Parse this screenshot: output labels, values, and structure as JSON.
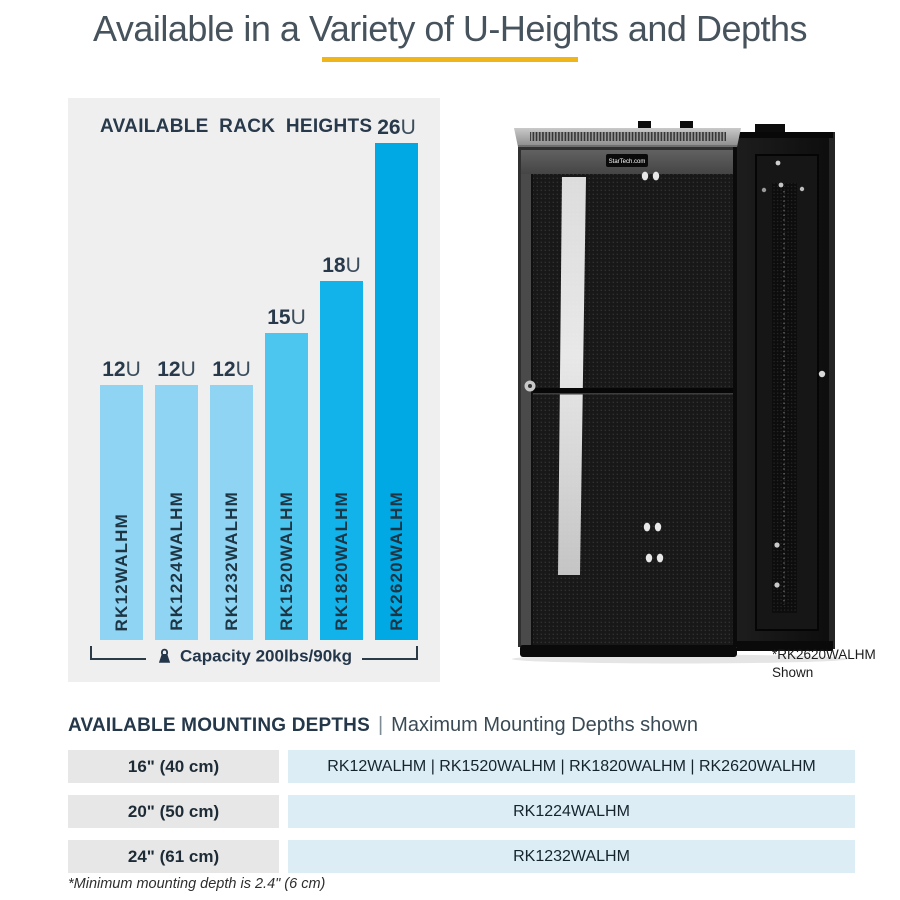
{
  "page": {
    "title": "Available in a Variety of U-Heights and Depths"
  },
  "colors": {
    "accent_yellow": "#efb519",
    "panel_bg": "#efefef",
    "navy_text": "#25384a",
    "table_row_gray": "#e7e7e7",
    "table_row_blue": "#dcedf6"
  },
  "chart_data": {
    "type": "bar",
    "title": "AVAILABLE RACK HEIGHTS",
    "categories": [
      "RK12WALHM",
      "RK1224WALHM",
      "RK1232WALHM",
      "RK1520WALHM",
      "RK1820WALHM",
      "RK2620WALHM"
    ],
    "values": [
      12,
      12,
      12,
      15,
      18,
      26
    ],
    "unit": "U",
    "bar_labels": [
      "12U",
      "12U",
      "12U",
      "15U",
      "18U",
      "26U"
    ],
    "bar_colors": [
      "#8fd4f3",
      "#8fd4f3",
      "#8fd4f3",
      "#4cc5ef",
      "#12b2ea",
      "#00a9e4"
    ],
    "annotation": "Capacity 200lbs/90kg",
    "ylim": [
      0,
      26
    ],
    "grid": false,
    "legend": "none"
  },
  "product": {
    "logo_text": "StarTech.com",
    "caption_line1": "*RK2620WALHM",
    "caption_line2": "Shown"
  },
  "mounting": {
    "heading": "AVAILABLE MOUNTING DEPTHS",
    "separator": "|",
    "subheading": "Maximum Mounting Depths shown",
    "rows": [
      {
        "depth": "16\" (40 cm)",
        "models": "RK12WALHM | RK1520WALHM | RK1820WALHM | RK2620WALHM"
      },
      {
        "depth": "20\" (50 cm)",
        "models": "RK1224WALHM"
      },
      {
        "depth": "24\" (61 cm)",
        "models": "RK1232WALHM"
      }
    ],
    "footnote": "*Minimum mounting depth is 2.4\" (6 cm)"
  }
}
